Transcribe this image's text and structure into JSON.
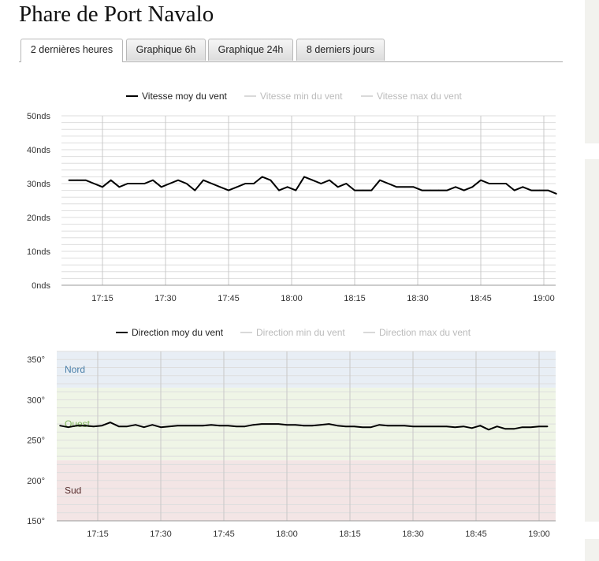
{
  "page": {
    "title": "Phare de Port Navalo"
  },
  "tabs": [
    {
      "label": "2 dernières heures",
      "active": true
    },
    {
      "label": "Graphique 6h",
      "active": false
    },
    {
      "label": "Graphique 24h",
      "active": false
    },
    {
      "label": "8 derniers jours",
      "active": false
    }
  ],
  "colors": {
    "series_main": "#000000",
    "series_muted": "#cccccc",
    "zone_nord": "#e8eef5",
    "zone_ouest": "#eff5e6",
    "zone_sud": "#f3e5e5"
  },
  "chart_data": [
    {
      "type": "line",
      "legend": [
        {
          "name": "Vitesse moy du vent",
          "active": true
        },
        {
          "name": "Vitesse min du vent",
          "active": false
        },
        {
          "name": "Vitesse max du vent",
          "active": false
        }
      ],
      "ylim": [
        0,
        50
      ],
      "y_ticks": [
        0,
        10,
        20,
        30,
        40,
        50
      ],
      "y_tick_labels": [
        "0nds",
        "10nds",
        "20nds",
        "30nds",
        "40nds",
        "50nds"
      ],
      "x_tick_labels": [
        "17:15",
        "17:30",
        "17:45",
        "18:00",
        "18:15",
        "18:30",
        "18:45",
        "19:00"
      ],
      "grid": true,
      "legend_position": "top-center",
      "series": [
        {
          "name": "Vitesse moy du vent",
          "x": [
            "17:07",
            "17:09",
            "17:11",
            "17:13",
            "17:15",
            "17:17",
            "17:19",
            "17:21",
            "17:23",
            "17:25",
            "17:27",
            "17:29",
            "17:31",
            "17:33",
            "17:35",
            "17:37",
            "17:39",
            "17:41",
            "17:43",
            "17:45",
            "17:47",
            "17:49",
            "17:51",
            "17:53",
            "17:55",
            "17:57",
            "17:59",
            "18:01",
            "18:03",
            "18:05",
            "18:07",
            "18:09",
            "18:11",
            "18:13",
            "18:15",
            "18:17",
            "18:19",
            "18:21",
            "18:23",
            "18:25",
            "18:27",
            "18:29",
            "18:31",
            "18:33",
            "18:35",
            "18:37",
            "18:39",
            "18:41",
            "18:43",
            "18:45",
            "18:47",
            "18:49",
            "18:51",
            "18:53",
            "18:55",
            "18:57",
            "18:59",
            "19:01",
            "19:03"
          ],
          "values": [
            31,
            31,
            31,
            30,
            29,
            31,
            29,
            30,
            30,
            30,
            31,
            29,
            30,
            31,
            30,
            28,
            31,
            30,
            29,
            28,
            29,
            30,
            30,
            32,
            31,
            28,
            29,
            28,
            32,
            31,
            30,
            31,
            29,
            30,
            28,
            28,
            28,
            31,
            30,
            29,
            29,
            29,
            28,
            28,
            28,
            28,
            29,
            28,
            29,
            31,
            30,
            30,
            30,
            28,
            29,
            28,
            28,
            28,
            27
          ]
        }
      ]
    },
    {
      "type": "line",
      "legend": [
        {
          "name": "Direction moy du vent",
          "active": true
        },
        {
          "name": "Direction min du vent",
          "active": false
        },
        {
          "name": "Direction max du vent",
          "active": false
        }
      ],
      "ylim": [
        150,
        360
      ],
      "y_ticks": [
        150,
        200,
        250,
        300,
        350
      ],
      "y_tick_labels": [
        "150°",
        "200°",
        "250°",
        "300°",
        "350°"
      ],
      "x_tick_labels": [
        "17:15",
        "17:30",
        "17:45",
        "18:00",
        "18:15",
        "18:30",
        "18:45",
        "19:00"
      ],
      "grid": true,
      "legend_position": "top-center",
      "bands": [
        {
          "label": "Nord",
          "from": 315,
          "to": 360,
          "color": "#e8eef5",
          "text_color": "#4a7fa8"
        },
        {
          "label": "Ouest",
          "from": 225,
          "to": 315,
          "color": "#eff5e6",
          "text_color": "#7fb35a"
        },
        {
          "label": "Sud",
          "from": 150,
          "to": 225,
          "color": "#f3e5e5",
          "text_color": "#5a3030"
        }
      ],
      "series": [
        {
          "name": "Direction moy du vent",
          "x": [
            "17:06",
            "17:08",
            "17:10",
            "17:12",
            "17:14",
            "17:16",
            "17:18",
            "17:20",
            "17:22",
            "17:24",
            "17:26",
            "17:28",
            "17:30",
            "17:32",
            "17:34",
            "17:36",
            "17:38",
            "17:40",
            "17:42",
            "17:44",
            "17:46",
            "17:48",
            "17:50",
            "17:52",
            "17:54",
            "17:56",
            "17:58",
            "18:00",
            "18:02",
            "18:04",
            "18:06",
            "18:08",
            "18:10",
            "18:12",
            "18:14",
            "18:16",
            "18:18",
            "18:20",
            "18:22",
            "18:24",
            "18:26",
            "18:28",
            "18:30",
            "18:32",
            "18:34",
            "18:36",
            "18:38",
            "18:40",
            "18:42",
            "18:44",
            "18:46",
            "18:48",
            "18:50",
            "18:52",
            "18:54",
            "18:56",
            "18:58",
            "19:00",
            "19:02"
          ],
          "values": [
            268,
            266,
            268,
            268,
            267,
            268,
            272,
            267,
            267,
            269,
            266,
            269,
            266,
            267,
            268,
            268,
            268,
            268,
            269,
            268,
            268,
            267,
            267,
            269,
            270,
            270,
            270,
            269,
            269,
            268,
            268,
            269,
            270,
            268,
            267,
            267,
            266,
            266,
            269,
            268,
            268,
            268,
            267,
            267,
            267,
            267,
            267,
            266,
            267,
            265,
            268,
            263,
            267,
            264,
            264,
            266,
            266,
            267,
            267
          ]
        }
      ]
    }
  ]
}
